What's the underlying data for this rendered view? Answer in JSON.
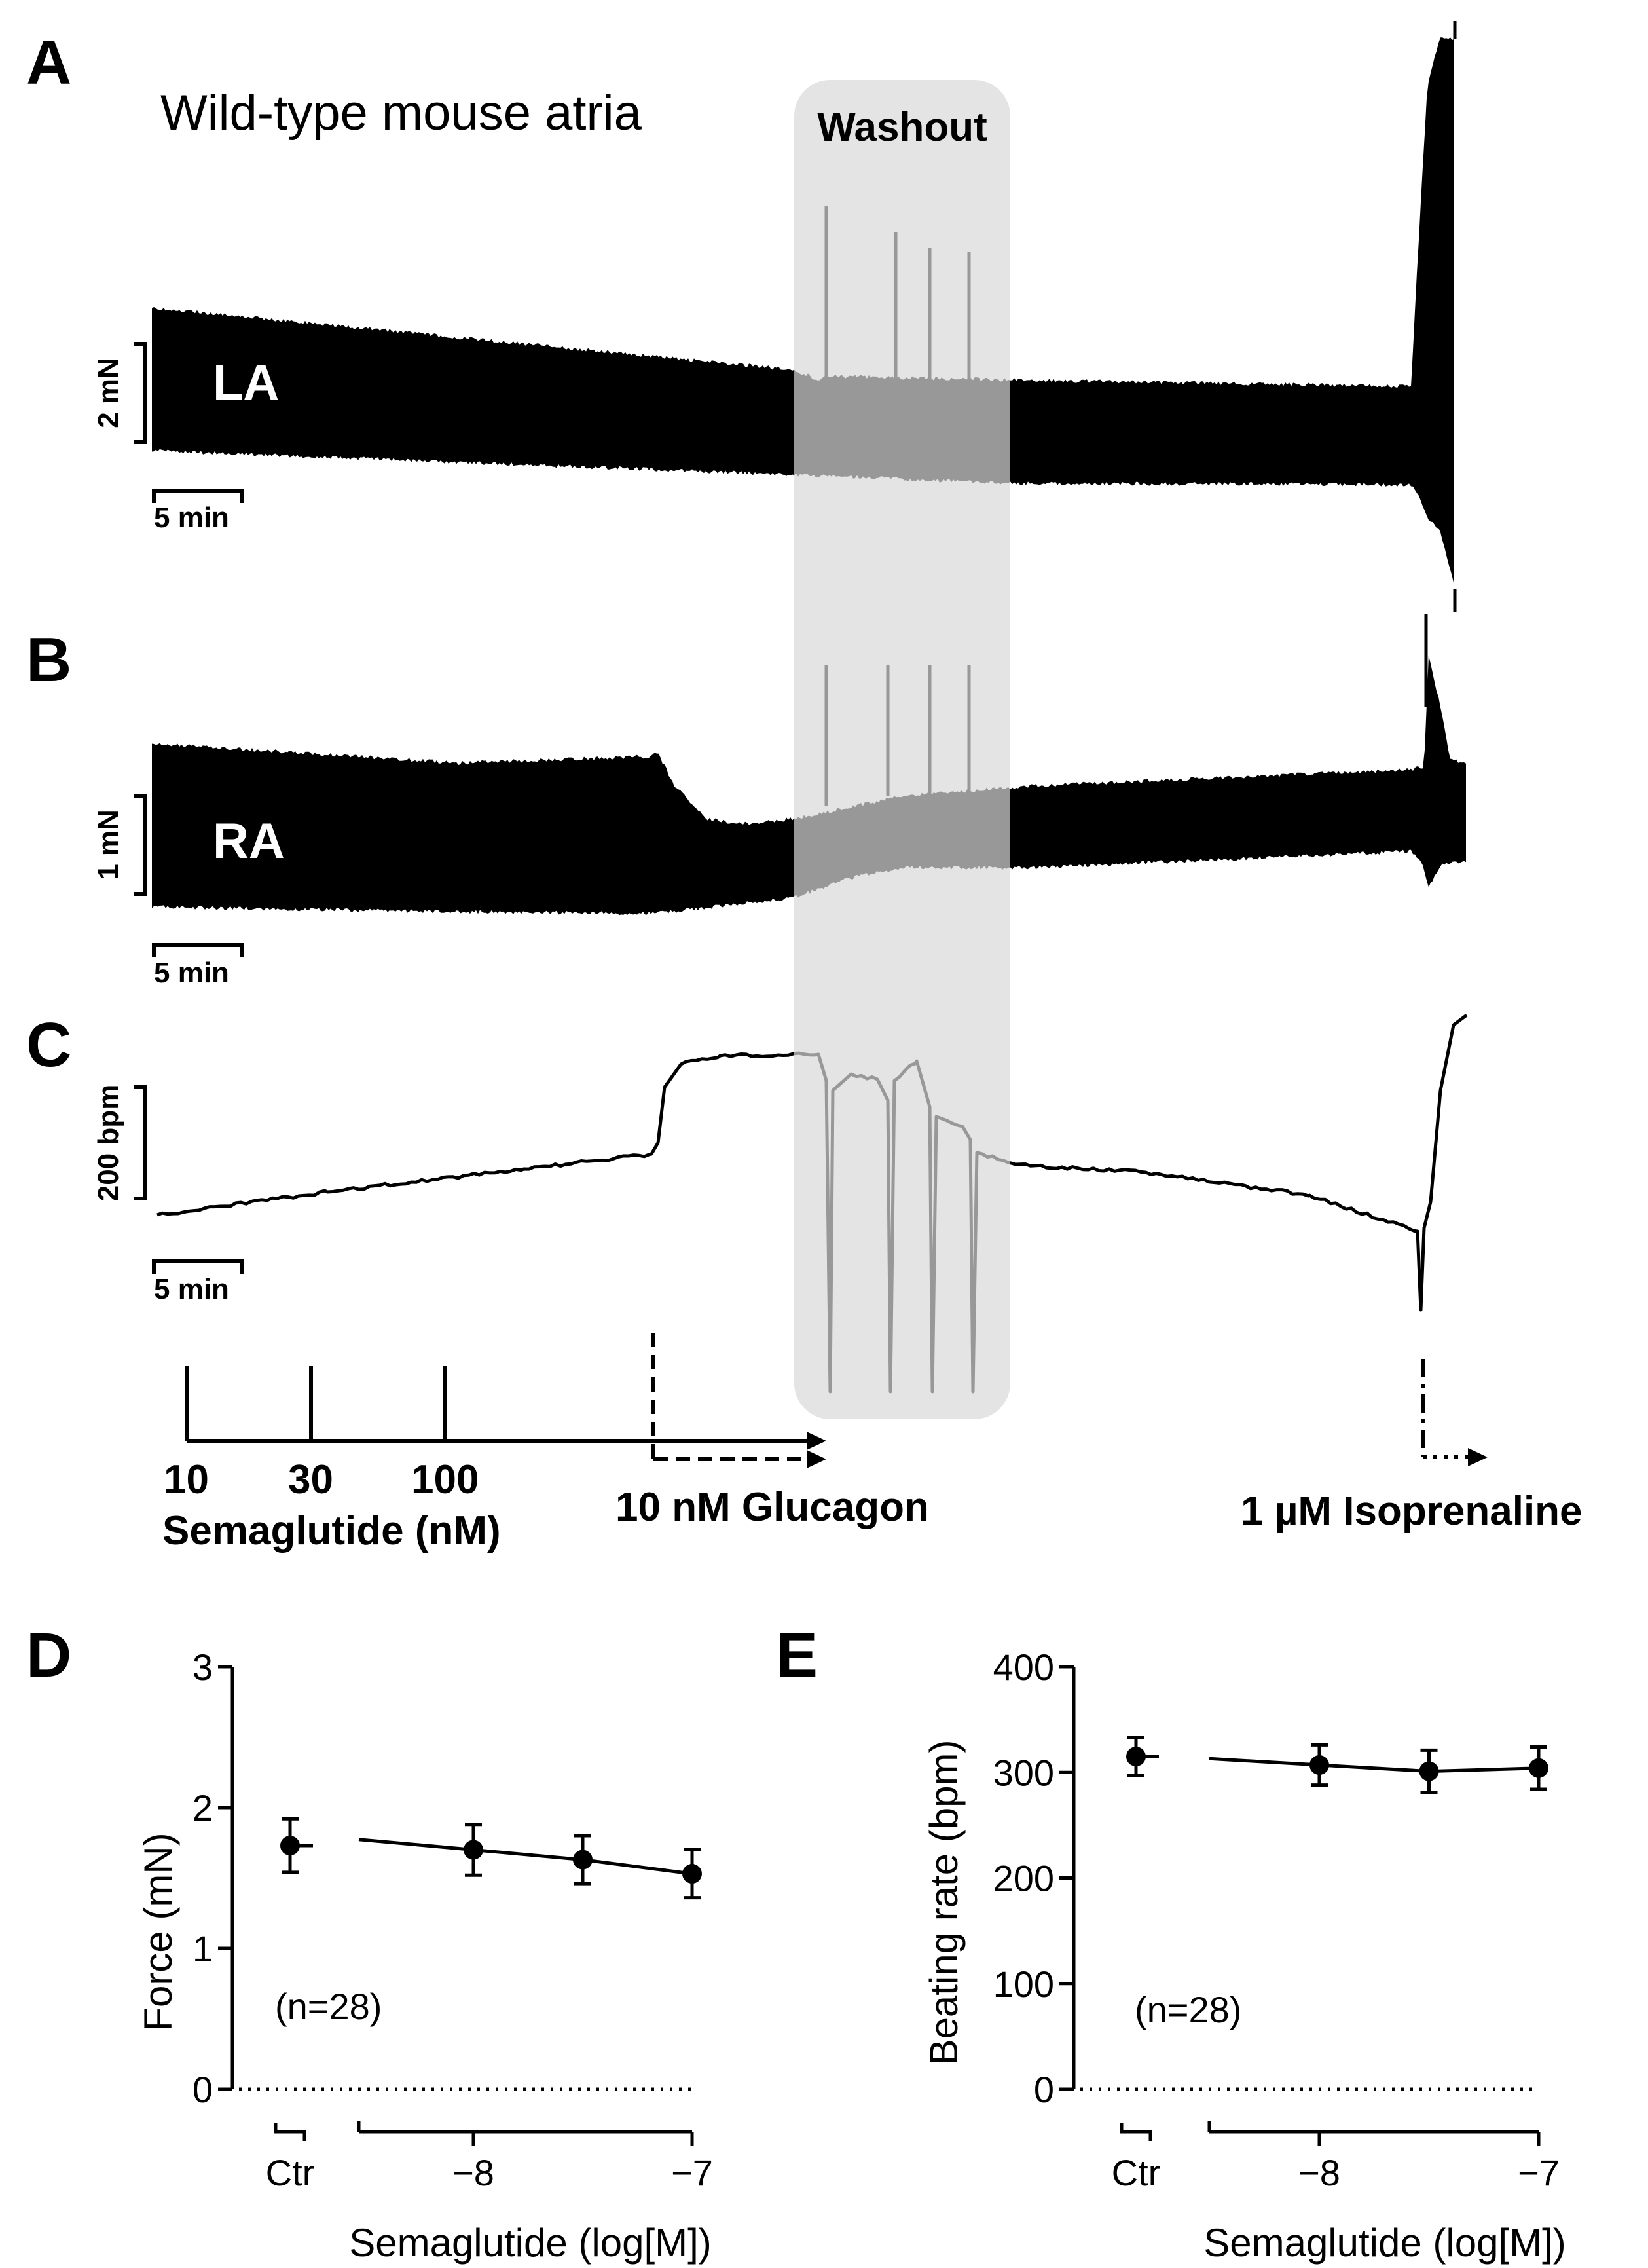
{
  "figure": {
    "panel_labels": {
      "A": "A",
      "B": "B",
      "C": "C",
      "D": "D",
      "E": "E"
    },
    "subtitle": "Wild-type mouse atria",
    "washout_label": "Washout",
    "trace_labels": {
      "la": "LA",
      "ra": "RA"
    },
    "scale_bars": {
      "la_force": "2 mN",
      "ra_force": "1 mN",
      "rate": "200 bpm",
      "time": "5 min"
    },
    "protocol": {
      "semaglutide_concentrations": [
        "10",
        "30",
        "100"
      ],
      "semaglutide_label": "Semaglutide (nM)",
      "glucagon_label": "10 nM Glucagon",
      "isoprenaline_label": "1 µM Isoprenaline"
    }
  },
  "chart_data": [
    {
      "panel": "D",
      "type": "line",
      "ylabel": "Force (mN)",
      "xlabel": "Semaglutide (log[M])",
      "ylim": [
        0,
        3
      ],
      "yticks": [
        "0",
        "1",
        "2",
        "3"
      ],
      "xticks": [
        "Ctr",
        "−8",
        "−7"
      ],
      "annotation": "(n=28)",
      "control": {
        "label": "Ctr",
        "mean": 1.73,
        "sem": 0.19
      },
      "series": [
        {
          "x": [
            -8,
            -7.5,
            -7
          ],
          "mean": [
            1.7,
            1.63,
            1.53
          ],
          "sem": [
            0.18,
            0.17,
            0.17
          ]
        }
      ],
      "zero_line": "dotted"
    },
    {
      "panel": "E",
      "type": "line",
      "ylabel": "Beating rate (bpm)",
      "xlabel": "Semaglutide (log[M])",
      "ylim": [
        0,
        400
      ],
      "yticks": [
        "0",
        "100",
        "200",
        "300",
        "400"
      ],
      "xticks": [
        "Ctr",
        "−8",
        "−7"
      ],
      "annotation": "(n=28)",
      "control": {
        "label": "Ctr",
        "mean": 315,
        "sem": 18
      },
      "series": [
        {
          "x": [
            -8,
            -7.5,
            -7
          ],
          "mean": [
            307,
            301,
            304
          ],
          "sem": [
            19,
            20,
            20
          ]
        }
      ],
      "zero_line": "dotted"
    }
  ]
}
